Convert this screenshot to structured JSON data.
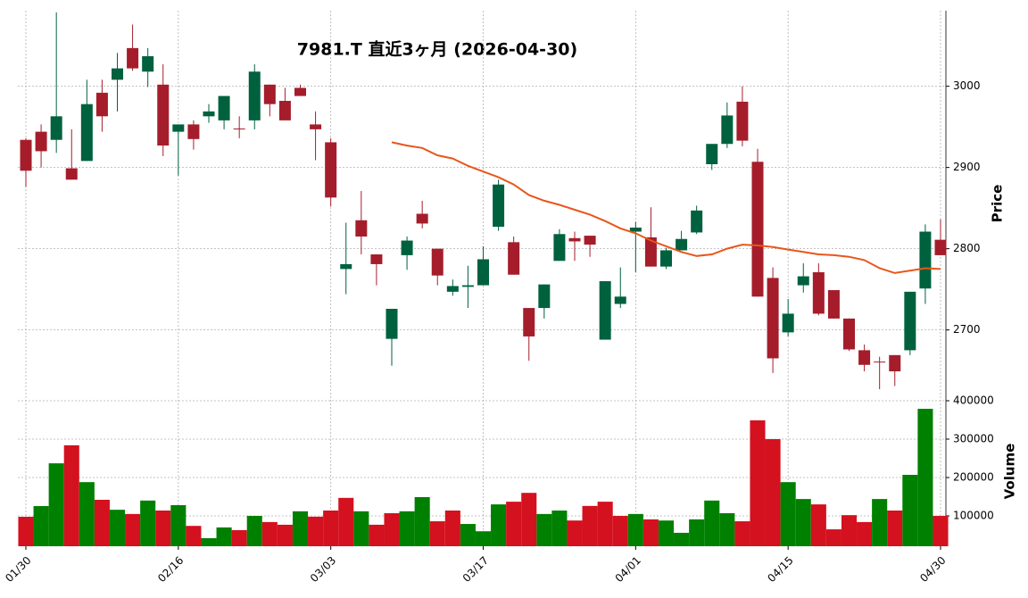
{
  "chart_data": {
    "type": "candlestick",
    "title": "7981.T  直近3ヶ月  (2026-04-30)",
    "ylabel": "Price",
    "categories": [
      "01/30",
      null,
      null,
      null,
      null,
      null,
      null,
      null,
      null,
      null,
      "02/16",
      null,
      null,
      null,
      null,
      null,
      null,
      null,
      null,
      null,
      "03/03",
      null,
      null,
      null,
      null,
      null,
      null,
      null,
      null,
      null,
      "03/17",
      null,
      null,
      null,
      null,
      null,
      null,
      null,
      null,
      null,
      "04/01",
      null,
      null,
      null,
      null,
      null,
      null,
      null,
      null,
      null,
      "04/15",
      null,
      null,
      null,
      null,
      null,
      null,
      null,
      null,
      null,
      "04/30"
    ],
    "open": [
      2934,
      2944,
      2934,
      2899,
      2908,
      2992,
      3008,
      3047,
      3018,
      3002,
      2944,
      2953,
      2963,
      2958,
      2948,
      2958,
      3002,
      2982,
      2998,
      2953,
      2931,
      2775,
      2835,
      2793,
      2689,
      2792,
      2843,
      2800,
      2747,
      2753,
      2755,
      2827,
      2808,
      2727,
      2727,
      2785,
      2813,
      2816,
      2688,
      2732,
      2821,
      2814,
      2778,
      2798,
      2820,
      2904,
      2929,
      2981,
      2907,
      2764,
      2697,
      2755,
      2771,
      2749,
      2714,
      2675,
      2661,
      2669,
      2675,
      2751,
      2811
    ],
    "high": [
      2936,
      2953,
      3091,
      2947,
      3008,
      3008,
      3041,
      3076,
      3047,
      3027,
      2953,
      2958,
      2978,
      2988,
      2963,
      3027,
      3002,
      2998,
      3002,
      2969,
      2936,
      2832,
      2871,
      2793,
      2726,
      2815,
      2859,
      2800,
      2762,
      2779,
      2803,
      2885,
      2815,
      2727,
      2756,
      2824,
      2821,
      2816,
      2760,
      2777,
      2833,
      2851,
      2801,
      2822,
      2853,
      2929,
      2980,
      3000,
      2923,
      2777,
      2738,
      2782,
      2782,
      2749,
      2714,
      2682,
      2667,
      2669,
      2747,
      2830,
      2836
    ],
    "low": [
      2876,
      2900,
      2918,
      2885,
      2908,
      2944,
      2969,
      3019,
      2999,
      2914,
      2890,
      2922,
      2955,
      2947,
      2936,
      2947,
      2963,
      2958,
      2988,
      2909,
      2852,
      2744,
      2793,
      2755,
      2656,
      2774,
      2825,
      2755,
      2742,
      2727,
      2755,
      2822,
      2768,
      2662,
      2714,
      2785,
      2785,
      2790,
      2688,
      2727,
      2771,
      2778,
      2775,
      2798,
      2818,
      2897,
      2924,
      2926,
      2741,
      2647,
      2692,
      2746,
      2718,
      2714,
      2674,
      2649,
      2627,
      2631,
      2669,
      2732,
      2792
    ],
    "close": [
      2896,
      2920,
      2963,
      2885,
      2978,
      2963,
      3022,
      3022,
      3037,
      2927,
      2953,
      2935,
      2969,
      2988,
      2947,
      3018,
      2978,
      2958,
      2988,
      2947,
      2863,
      2781,
      2815,
      2781,
      2726,
      2810,
      2831,
      2767,
      2754,
      2755,
      2787,
      2879,
      2768,
      2692,
      2756,
      2818,
      2809,
      2805,
      2760,
      2741,
      2826,
      2778,
      2798,
      2812,
      2847,
      2929,
      2964,
      2933,
      2741,
      2665,
      2720,
      2766,
      2720,
      2714,
      2676,
      2657,
      2660,
      2649,
      2747,
      2821,
      2792
    ],
    "up_color": "#00613f",
    "down_color": "#a51d2a",
    "ylim": [
      2615,
      3093
    ],
    "yticks": [
      2700,
      2800,
      2900,
      3000
    ],
    "grid": true,
    "moving_average": {
      "color": "#e8561a",
      "values": [
        null,
        null,
        null,
        null,
        null,
        null,
        null,
        null,
        null,
        null,
        null,
        null,
        null,
        null,
        null,
        null,
        null,
        null,
        null,
        null,
        null,
        null,
        null,
        null,
        2931,
        2927,
        2924,
        2915,
        2911,
        2902,
        2895,
        2888,
        2879,
        2866,
        2859,
        2854,
        2848,
        2842,
        2834,
        2825,
        2819,
        2810,
        2803,
        2796,
        2791,
        2793,
        2800,
        2805,
        2804,
        2802,
        2799,
        2796,
        2793,
        2792,
        2790,
        2786,
        2776,
        2770,
        2773,
        2776,
        2775
      ]
    },
    "volume": {
      "ylabel": "Volume",
      "ylim": [
        21000,
        400000
      ],
      "yticks": [
        100000,
        200000,
        300000,
        400000
      ],
      "values": [
        97700,
        125600,
        237000,
        284000,
        188000,
        142000,
        116000,
        105000,
        140000,
        114000,
        128000,
        74000,
        42000,
        70000,
        63000,
        100000,
        84000,
        77000,
        112000,
        98000,
        114000,
        147000,
        112000,
        77000,
        107000,
        112000,
        149000,
        86000,
        114000,
        79000,
        60000,
        130000,
        137000,
        160000,
        105000,
        114000,
        88000,
        126000,
        137000,
        100000,
        105000,
        91000,
        88000,
        56000,
        91000,
        140000,
        107000,
        86000,
        349000,
        300000,
        188000,
        144000,
        130000,
        65000,
        102000,
        84000,
        144000,
        114000,
        207000,
        379000,
        100000
      ],
      "colors": [
        "#d4111e",
        "#008000",
        "#008000",
        "#d4111e",
        "#008000",
        "#d4111e",
        "#008000",
        "#d4111e",
        "#008000",
        "#d4111e",
        "#008000",
        "#d4111e",
        "#008000",
        "#008000",
        "#d4111e",
        "#008000",
        "#d4111e",
        "#d4111e",
        "#008000",
        "#d4111e",
        "#d4111e",
        "#d4111e",
        "#008000",
        "#d4111e",
        "#d4111e",
        "#008000",
        "#008000",
        "#d4111e",
        "#d4111e",
        "#008000",
        "#008000",
        "#008000",
        "#d4111e",
        "#d4111e",
        "#008000",
        "#008000",
        "#d4111e",
        "#d4111e",
        "#d4111e",
        "#d4111e",
        "#008000",
        "#d4111e",
        "#008000",
        "#008000",
        "#008000",
        "#008000",
        "#008000",
        "#d4111e",
        "#d4111e",
        "#d4111e",
        "#008000",
        "#008000",
        "#d4111e",
        "#d4111e",
        "#d4111e",
        "#d4111e",
        "#008000",
        "#d4111e",
        "#008000",
        "#008000",
        "#d4111e"
      ]
    }
  }
}
